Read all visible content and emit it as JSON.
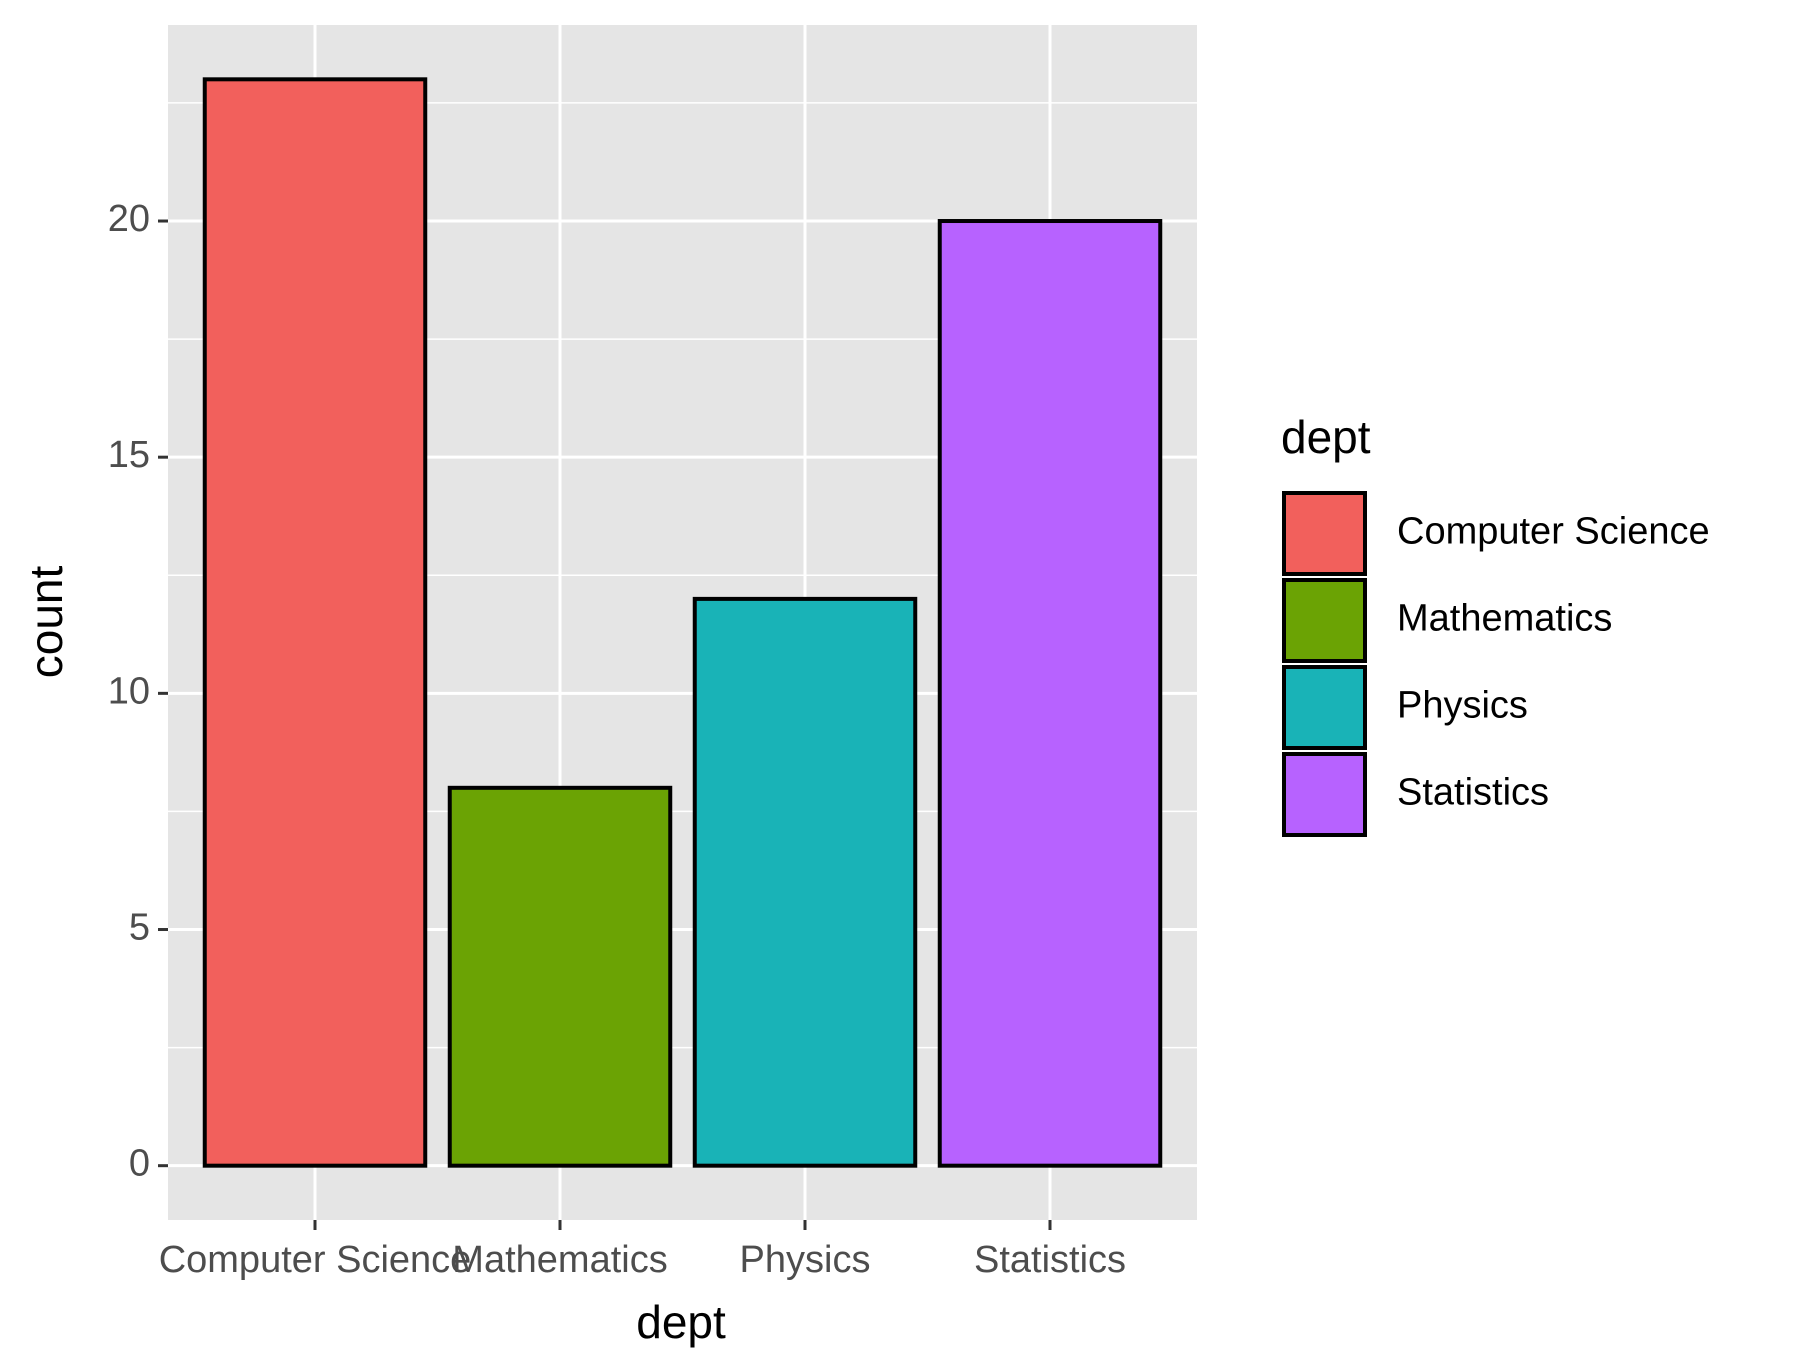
{
  "chart_data": {
    "type": "bar",
    "x_label": "dept",
    "y_label": "count",
    "legend_title": "dept",
    "categories": [
      "Computer Science",
      "Mathematics",
      "Physics",
      "Statistics"
    ],
    "values": [
      23,
      8,
      12,
      20
    ],
    "colors": [
      "#f2605c",
      "#6ba304",
      "#19b3b7",
      "#b762ff"
    ],
    "ylim": [
      -1.15,
      24.15
    ],
    "yticks": [
      0,
      5,
      10,
      15,
      20
    ],
    "minor_yticks": [
      2.5,
      7.5,
      12.5,
      17.5,
      22.5
    ],
    "grid": true,
    "legend": "right"
  }
}
